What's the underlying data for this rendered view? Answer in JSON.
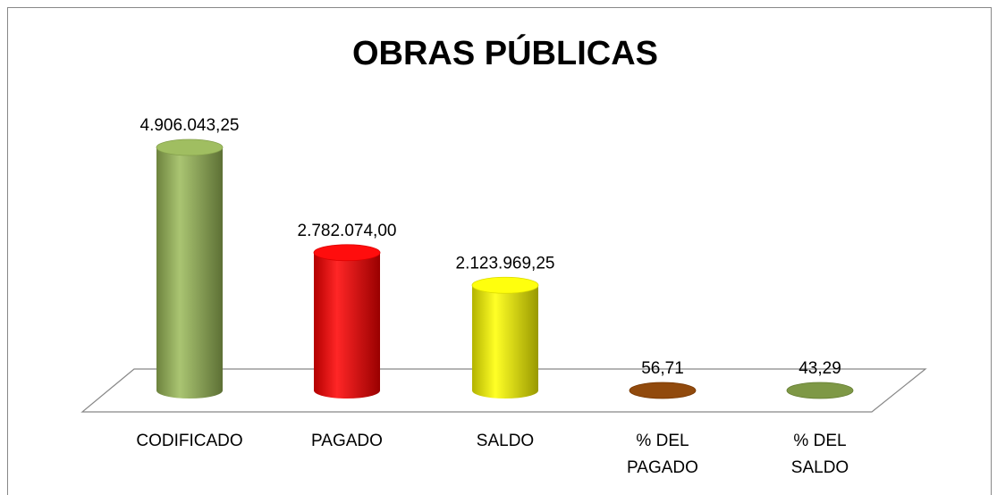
{
  "chart_data": {
    "type": "bar3d",
    "title": "OBRAS PÚBLICAS",
    "categories": [
      "CODIFICADO",
      "PAGADO",
      "SALDO",
      "% DEL PAGADO",
      "% DEL SALDO"
    ],
    "values": [
      4906043.25,
      2782074.0,
      2123969.25,
      56.71,
      43.29
    ],
    "value_labels": [
      "4.906.043,25",
      "2.782.074,00",
      "2.123.969,25",
      "56,71",
      "43,29"
    ],
    "colors": [
      "#9bbb59",
      "#ff0000",
      "#ffff00",
      "#8b4000",
      "#77933c"
    ]
  }
}
